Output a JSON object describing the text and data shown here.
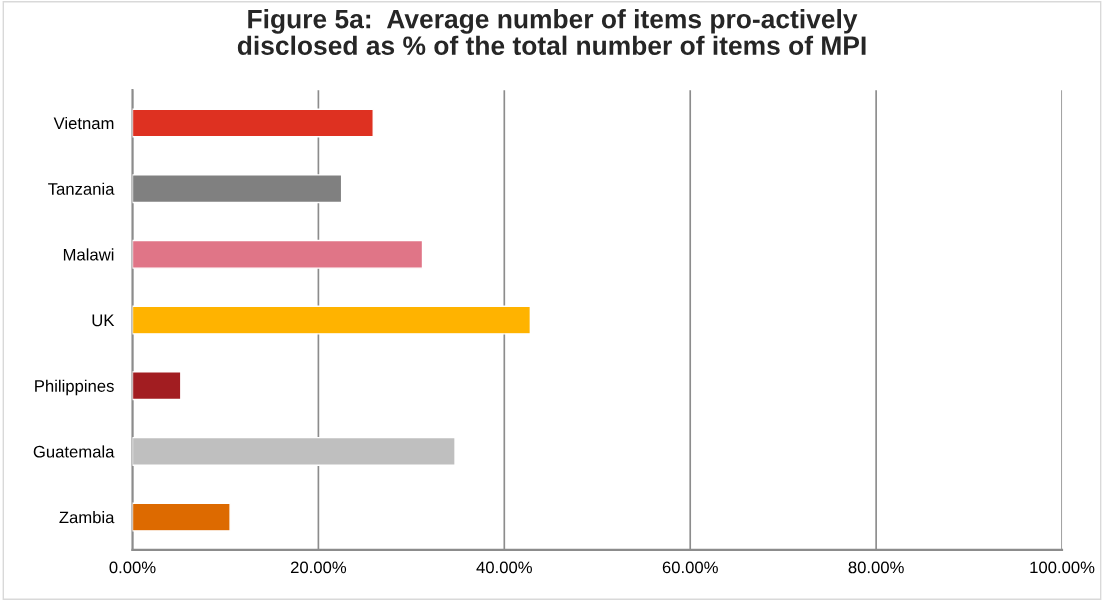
{
  "chart_data": {
    "type": "bar",
    "orientation": "horizontal",
    "title": "Figure 5a:  Average number of items pro-actively\ndisclosed as % of the total number of items of MPI",
    "categories": [
      "Vietnam",
      "Tanzania",
      "Malawi",
      "UK",
      "Philippines",
      "Guatemala",
      "Zambia"
    ],
    "values": [
      25.9,
      22.5,
      31.2,
      42.8,
      5.2,
      34.7,
      10.5
    ],
    "colors": [
      "#de3121",
      "#808080",
      "#e07587",
      "#ffb300",
      "#a21d21",
      "#bfbfbf",
      "#dd6a00"
    ],
    "xlim": [
      0,
      100
    ],
    "xticks": [
      {
        "value": 0,
        "label": "0.00%"
      },
      {
        "value": 20,
        "label": "20.00%"
      },
      {
        "value": 40,
        "label": "40.00%"
      },
      {
        "value": 60,
        "label": "60.00%"
      },
      {
        "value": 80,
        "label": "80.00%"
      },
      {
        "value": 100,
        "label": "100.00%"
      }
    ],
    "grid": "x",
    "legend": false
  }
}
